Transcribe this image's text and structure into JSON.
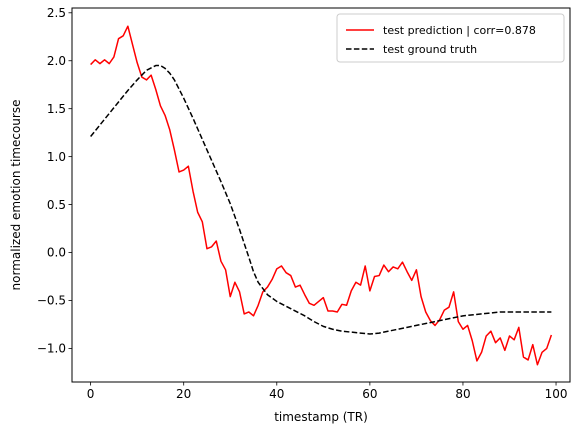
{
  "chart_data": {
    "type": "line",
    "xlabel": "timestamp (TR)",
    "ylabel": "normalized emotion timecourse",
    "xlim": [
      -4,
      103
    ],
    "ylim": [
      -1.35,
      2.55
    ],
    "xticks": [
      0,
      20,
      40,
      60,
      80,
      100
    ],
    "xtick_labels": [
      "0",
      "20",
      "40",
      "60",
      "80",
      "100"
    ],
    "yticks": [
      -1.0,
      -0.5,
      0.0,
      0.5,
      1.0,
      1.5,
      2.0,
      2.5
    ],
    "ytick_labels": [
      "−1.0",
      "−0.5",
      "0.0",
      "0.5",
      "1.0",
      "1.5",
      "2.0",
      "2.5"
    ],
    "grid": false,
    "legend_position": "top-right",
    "series": [
      {
        "name": "test prediction | corr=0.878",
        "color": "#ff0000",
        "dash": "solid",
        "x": [
          0,
          1,
          2,
          3,
          4,
          5,
          6,
          7,
          8,
          9,
          10,
          11,
          12,
          13,
          14,
          15,
          16,
          17,
          18,
          19,
          20,
          21,
          22,
          23,
          24,
          25,
          26,
          27,
          28,
          29,
          30,
          31,
          32,
          33,
          34,
          35,
          36,
          37,
          38,
          39,
          40,
          41,
          42,
          43,
          44,
          45,
          46,
          47,
          48,
          49,
          50,
          51,
          52,
          53,
          54,
          55,
          56,
          57,
          58,
          59,
          60,
          61,
          62,
          63,
          64,
          65,
          66,
          67,
          68,
          69,
          70,
          71,
          72,
          73,
          74,
          75,
          76,
          77,
          78,
          79,
          80,
          81,
          82,
          83,
          84,
          85,
          86,
          87,
          88,
          89,
          90,
          91,
          92,
          93,
          94,
          95,
          96,
          97,
          98,
          99
        ],
        "values": [
          1.96,
          2.01,
          1.97,
          2.01,
          1.97,
          2.04,
          2.23,
          2.26,
          2.36,
          2.17,
          1.98,
          1.83,
          1.8,
          1.85,
          1.7,
          1.53,
          1.43,
          1.28,
          1.07,
          0.84,
          0.86,
          0.9,
          0.64,
          0.42,
          0.32,
          0.04,
          0.06,
          0.12,
          -0.09,
          -0.18,
          -0.46,
          -0.31,
          -0.41,
          -0.64,
          -0.62,
          -0.66,
          -0.55,
          -0.41,
          -0.36,
          -0.28,
          -0.17,
          -0.14,
          -0.21,
          -0.24,
          -0.36,
          -0.34,
          -0.44,
          -0.53,
          -0.55,
          -0.51,
          -0.47,
          -0.61,
          -0.61,
          -0.62,
          -0.54,
          -0.55,
          -0.4,
          -0.31,
          -0.34,
          -0.14,
          -0.4,
          -0.25,
          -0.24,
          -0.13,
          -0.2,
          -0.15,
          -0.17,
          -0.1,
          -0.2,
          -0.29,
          -0.18,
          -0.46,
          -0.62,
          -0.71,
          -0.76,
          -0.7,
          -0.6,
          -0.57,
          -0.41,
          -0.72,
          -0.8,
          -0.76,
          -0.92,
          -1.13,
          -1.04,
          -0.87,
          -0.82,
          -0.94,
          -0.89,
          -1.02,
          -0.87,
          -0.91,
          -0.78,
          -1.09,
          -1.12,
          -0.96,
          -1.17,
          -1.04,
          -1.0,
          -0.86
        ]
      },
      {
        "name": "test ground truth",
        "color": "#000000",
        "dash": "dashed",
        "x": [
          0,
          2,
          4,
          6,
          8,
          10,
          12,
          14,
          15,
          16,
          17,
          18,
          20,
          22,
          24,
          26,
          28,
          30,
          32,
          34,
          35,
          36,
          38,
          40,
          42,
          44,
          46,
          48,
          50,
          52,
          54,
          56,
          58,
          60,
          62,
          64,
          66,
          68,
          70,
          72,
          74,
          76,
          78,
          80,
          82,
          84,
          86,
          88,
          90,
          92,
          94,
          96,
          98,
          99
        ],
        "values": [
          1.21,
          1.33,
          1.45,
          1.57,
          1.69,
          1.8,
          1.9,
          1.95,
          1.95,
          1.92,
          1.87,
          1.8,
          1.61,
          1.4,
          1.18,
          0.96,
          0.74,
          0.51,
          0.24,
          -0.05,
          -0.2,
          -0.31,
          -0.44,
          -0.51,
          -0.56,
          -0.61,
          -0.66,
          -0.72,
          -0.77,
          -0.8,
          -0.82,
          -0.83,
          -0.84,
          -0.85,
          -0.84,
          -0.82,
          -0.8,
          -0.78,
          -0.76,
          -0.74,
          -0.72,
          -0.7,
          -0.68,
          -0.66,
          -0.65,
          -0.64,
          -0.63,
          -0.62,
          -0.62,
          -0.62,
          -0.62,
          -0.62,
          -0.62,
          -0.62
        ]
      }
    ]
  }
}
